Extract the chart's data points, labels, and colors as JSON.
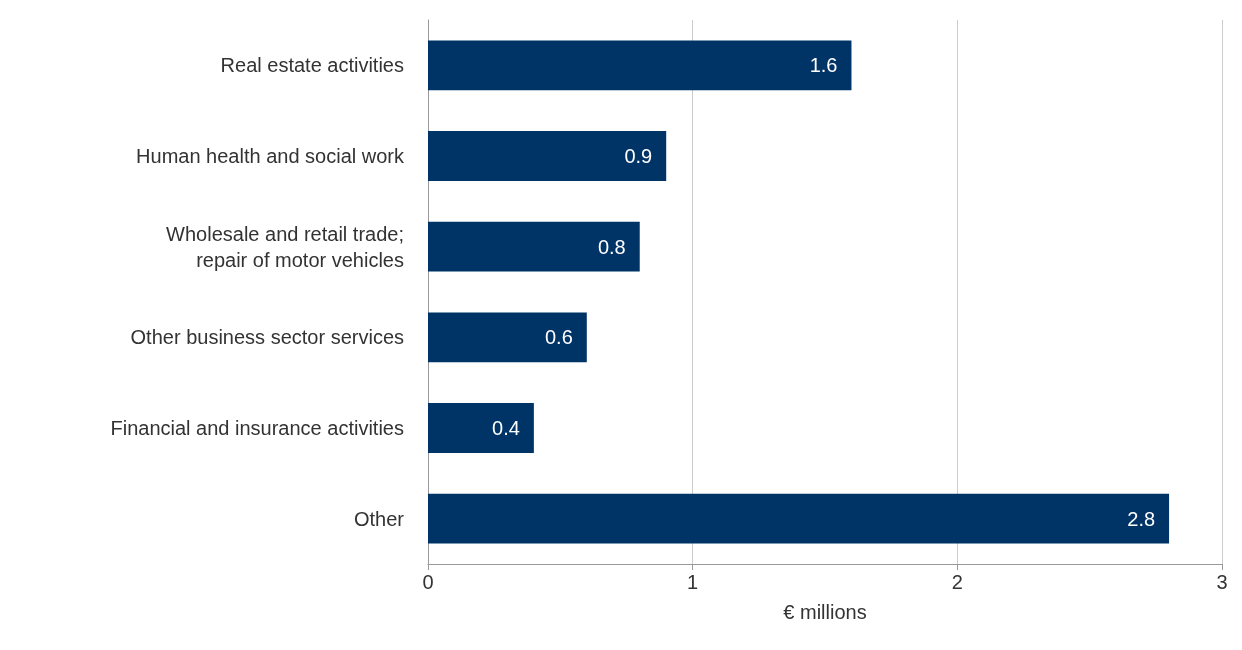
{
  "chart_data": {
    "type": "bar",
    "orientation": "horizontal",
    "xlabel": "€ millions",
    "categories": [
      "Real estate activities",
      "Human health and social work",
      "Wholesale and retail trade;\nrepair of motor vehicles",
      "Other business sector services",
      "Financial and insurance activities",
      "Other"
    ],
    "values": [
      1.6,
      0.9,
      0.8,
      0.6,
      0.4,
      2.8
    ],
    "color": "#003366",
    "xlim": [
      0,
      3
    ],
    "xticks": [
      0,
      1,
      2,
      3
    ],
    "grid": "x",
    "data_labels": true
  }
}
